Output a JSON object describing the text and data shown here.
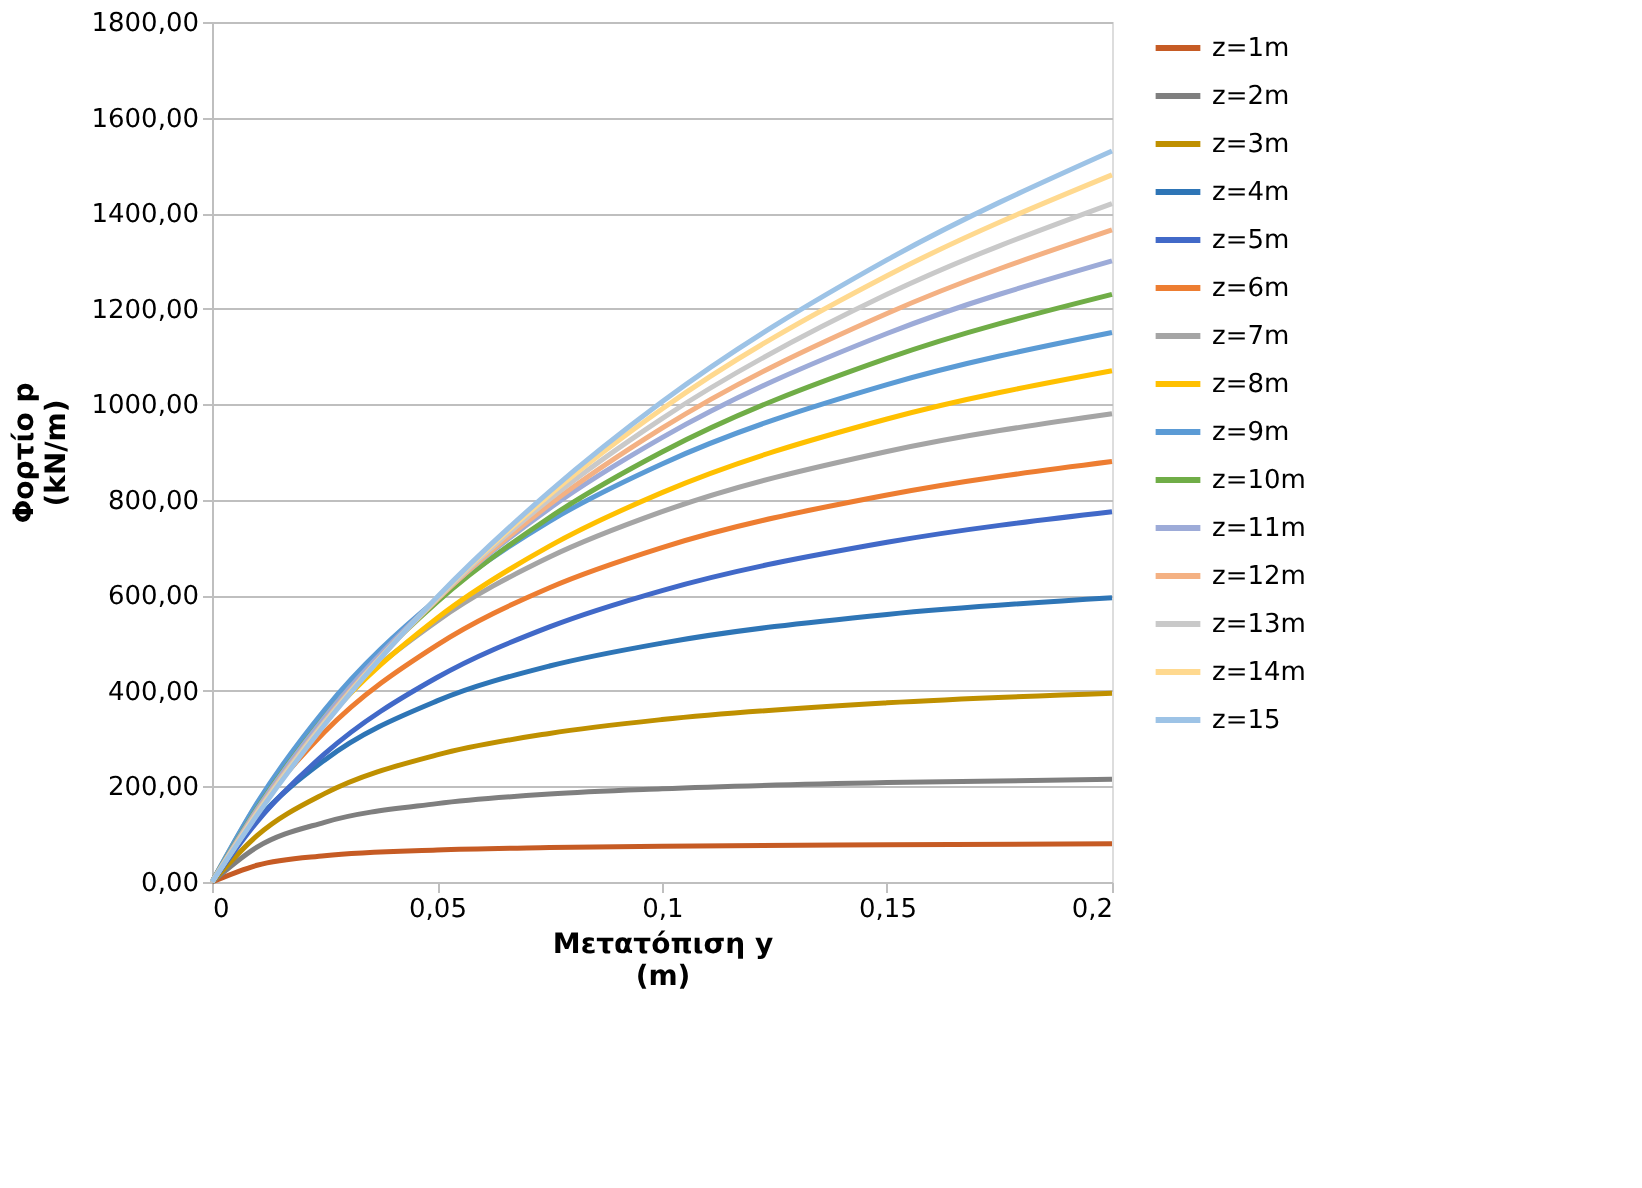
{
  "chart_data": {
    "type": "line",
    "xlabel": "Μετατόπιση y (m)",
    "ylabel": "Φορτίο p (kN/m)",
    "x": [
      0,
      0.01,
      0.025,
      0.05,
      0.075,
      0.1,
      0.15,
      0.2
    ],
    "xlim": [
      0,
      0.2
    ],
    "ylim": [
      0,
      1800
    ],
    "xticks": [
      0,
      {
        "value": 0.05,
        "label": "0,05"
      },
      {
        "value": 0.1,
        "label": "0,1"
      },
      {
        "value": 0.15,
        "label": "0,15"
      },
      {
        "value": 0.2,
        "label": "0,2"
      }
    ],
    "yticks": [
      {
        "value": 0,
        "label": "0,00"
      },
      {
        "value": 200,
        "label": "200,00"
      },
      {
        "value": 400,
        "label": "400,00"
      },
      {
        "value": 600,
        "label": "600,00"
      },
      {
        "value": 800,
        "label": "800,00"
      },
      {
        "value": 1000,
        "label": "1000,00"
      },
      {
        "value": 1200,
        "label": "1200,00"
      },
      {
        "value": 1400,
        "label": "1400,00"
      },
      {
        "value": 1600,
        "label": "1600,00"
      },
      {
        "value": 1800,
        "label": "1800,00"
      }
    ],
    "grid": "y",
    "legend": "right",
    "marker": "none",
    "line_style": "solid",
    "series": [
      {
        "name": "z=1m",
        "color": "#c65b24",
        "values": [
          0,
          35,
          55,
          67,
          72,
          75,
          78,
          80
        ]
      },
      {
        "name": "z=2m",
        "color": "#7f7f7f",
        "values": [
          0,
          73,
          125,
          164,
          184,
          195,
          208,
          215
        ]
      },
      {
        "name": "z=3m",
        "color": "#bf9000",
        "values": [
          0,
          97,
          185,
          266,
          311,
          340,
          375,
          395
        ]
      },
      {
        "name": "z=4m",
        "color": "#2e75b6",
        "values": [
          0,
          129,
          255,
          379,
          452,
          500,
          560,
          595
        ]
      },
      {
        "name": "z=5m",
        "color": "#4169c8",
        "values": [
          0,
          126,
          268,
          428,
          534,
          610,
          711,
          775
        ]
      },
      {
        "name": "z=6m",
        "color": "#ed7d31",
        "values": [
          0,
          149,
          314,
          496,
          616,
          700,
          810,
          880
        ]
      },
      {
        "name": "z=7m",
        "color": "#a5a5a5",
        "values": [
          0,
          163,
          344,
          546,
          680,
          775,
          901,
          980
        ]
      },
      {
        "name": "z=8m",
        "color": "#ffc000",
        "values": [
          0,
          154,
          336,
          552,
          703,
          815,
          969,
          1070
        ]
      },
      {
        "name": "z=9m",
        "color": "#5b9bd5",
        "values": [
          0,
          165,
          360,
          592,
          755,
          875,
          1041,
          1150
        ]
      },
      {
        "name": "z=10m",
        "color": "#70ad47",
        "values": [
          0,
          154,
          345,
          586,
          763,
          900,
          1096,
          1230
        ]
      },
      {
        "name": "z=11m",
        "color": "#9dabd8",
        "values": [
          0,
          152,
          344,
          593,
          782,
          930,
          1148,
          1300
        ]
      },
      {
        "name": "z=12m",
        "color": "#f4b183",
        "values": [
          0,
          147,
          336,
          591,
          790,
          950,
          1190,
          1365
        ]
      },
      {
        "name": "z=13m",
        "color": "#c9c9c9",
        "values": [
          0,
          145,
          334,
          593,
          801,
          970,
          1230,
          1420
        ]
      },
      {
        "name": "z=14m",
        "color": "#ffd98f",
        "values": [
          0,
          142,
          331,
          595,
          810,
          990,
          1269,
          1480
        ]
      },
      {
        "name": "z=15",
        "color": "#9dc3e6",
        "values": [
          0,
          140,
          329,
          596,
          817,
          1005,
          1302,
          1530
        ]
      }
    ]
  }
}
